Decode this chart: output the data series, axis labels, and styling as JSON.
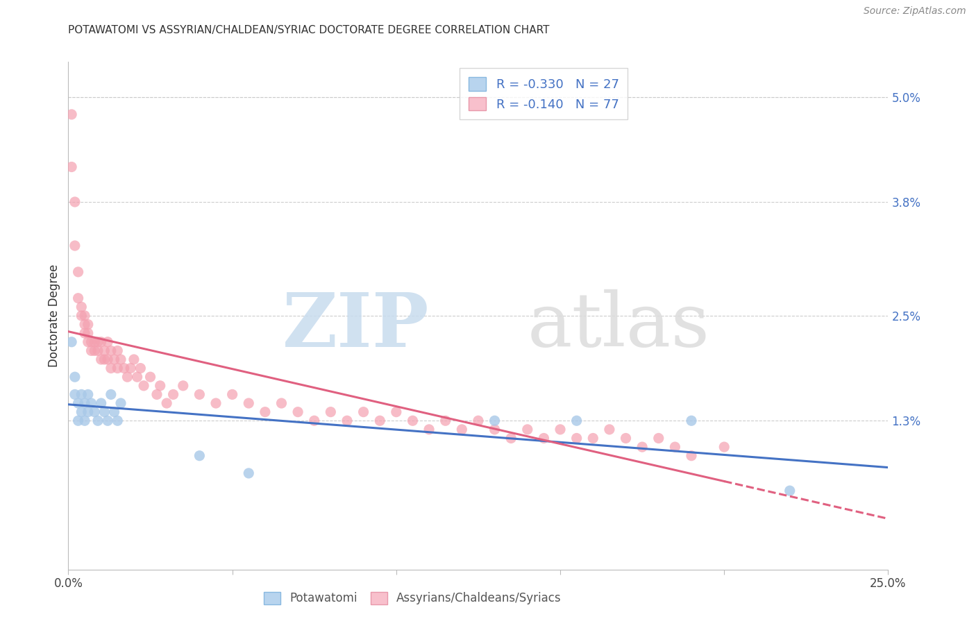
{
  "title": "POTAWATOMI VS ASSYRIAN/CHALDEAN/SYRIAC DOCTORATE DEGREE CORRELATION CHART",
  "source": "Source: ZipAtlas.com",
  "ylabel": "Doctorate Degree",
  "right_yticks": [
    "5.0%",
    "3.8%",
    "2.5%",
    "1.3%"
  ],
  "right_ytick_vals": [
    0.05,
    0.038,
    0.025,
    0.013
  ],
  "xlim": [
    0.0,
    0.25
  ],
  "ylim": [
    -0.004,
    0.054
  ],
  "blue_color": "#A8C8E8",
  "pink_color": "#F4A0B0",
  "blue_line_color": "#4472C4",
  "pink_line_color": "#E06080",
  "background_color": "#FFFFFF",
  "grid_color": "#CCCCCC",
  "potawatomi_x": [
    0.001,
    0.002,
    0.002,
    0.003,
    0.003,
    0.004,
    0.004,
    0.005,
    0.005,
    0.006,
    0.006,
    0.007,
    0.008,
    0.009,
    0.01,
    0.011,
    0.012,
    0.013,
    0.014,
    0.015,
    0.016,
    0.04,
    0.055,
    0.19,
    0.22,
    0.155,
    0.13
  ],
  "potawatomi_y": [
    0.022,
    0.018,
    0.016,
    0.015,
    0.013,
    0.014,
    0.016,
    0.015,
    0.013,
    0.014,
    0.016,
    0.015,
    0.014,
    0.013,
    0.015,
    0.014,
    0.013,
    0.016,
    0.014,
    0.013,
    0.015,
    0.009,
    0.007,
    0.013,
    0.005,
    0.013,
    0.013
  ],
  "assyrian_x": [
    0.001,
    0.001,
    0.002,
    0.002,
    0.003,
    0.003,
    0.004,
    0.004,
    0.005,
    0.005,
    0.005,
    0.006,
    0.006,
    0.006,
    0.007,
    0.007,
    0.008,
    0.008,
    0.009,
    0.009,
    0.01,
    0.01,
    0.011,
    0.011,
    0.012,
    0.012,
    0.013,
    0.013,
    0.014,
    0.015,
    0.015,
    0.016,
    0.017,
    0.018,
    0.019,
    0.02,
    0.021,
    0.022,
    0.023,
    0.025,
    0.027,
    0.028,
    0.03,
    0.032,
    0.035,
    0.04,
    0.045,
    0.05,
    0.055,
    0.06,
    0.065,
    0.07,
    0.075,
    0.08,
    0.085,
    0.09,
    0.095,
    0.1,
    0.105,
    0.11,
    0.115,
    0.12,
    0.125,
    0.13,
    0.135,
    0.14,
    0.145,
    0.15,
    0.155,
    0.16,
    0.165,
    0.17,
    0.175,
    0.18,
    0.185,
    0.19,
    0.2
  ],
  "assyrian_y": [
    0.048,
    0.042,
    0.038,
    0.033,
    0.03,
    0.027,
    0.026,
    0.025,
    0.025,
    0.024,
    0.023,
    0.024,
    0.023,
    0.022,
    0.022,
    0.021,
    0.022,
    0.021,
    0.022,
    0.021,
    0.022,
    0.02,
    0.021,
    0.02,
    0.022,
    0.02,
    0.021,
    0.019,
    0.02,
    0.021,
    0.019,
    0.02,
    0.019,
    0.018,
    0.019,
    0.02,
    0.018,
    0.019,
    0.017,
    0.018,
    0.016,
    0.017,
    0.015,
    0.016,
    0.017,
    0.016,
    0.015,
    0.016,
    0.015,
    0.014,
    0.015,
    0.014,
    0.013,
    0.014,
    0.013,
    0.014,
    0.013,
    0.014,
    0.013,
    0.012,
    0.013,
    0.012,
    0.013,
    0.012,
    0.011,
    0.012,
    0.011,
    0.012,
    0.011,
    0.011,
    0.012,
    0.011,
    0.01,
    0.011,
    0.01,
    0.009,
    0.01
  ]
}
